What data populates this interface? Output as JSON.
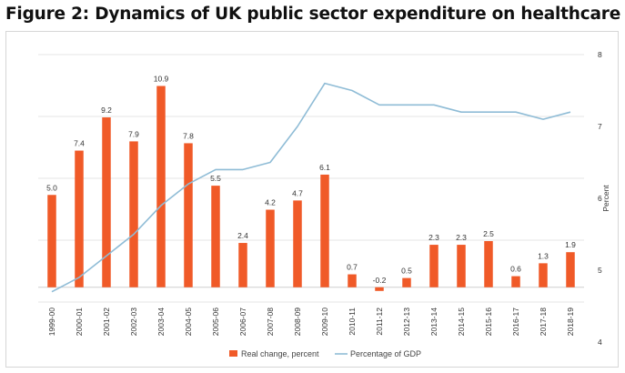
{
  "title": "Figure 2: Dynamics of UK public sector expenditure on healthcare",
  "colors": {
    "bar": "#f05a28",
    "line": "#8fbcd6",
    "grid": "#e6e6e6"
  },
  "chart_data": {
    "type": "bar+line",
    "categories": [
      "1999-00",
      "2000-01",
      "2001-02",
      "2002-03",
      "2003-04",
      "2004-05",
      "2005-06",
      "2006-07",
      "2007-08",
      "2008-09",
      "2009-10",
      "2010-11",
      "2011-12",
      "2012-13",
      "2013-14",
      "2014-15",
      "2015-16",
      "2016-17",
      "2017-18",
      "2018-19"
    ],
    "series": [
      {
        "name": "Real change, percent",
        "type": "bar",
        "axis": "left",
        "values": [
          5.0,
          7.4,
          9.2,
          7.9,
          10.9,
          7.8,
          5.5,
          2.4,
          4.2,
          4.7,
          6.1,
          0.7,
          -0.2,
          0.5,
          2.3,
          2.3,
          2.5,
          0.6,
          1.3,
          1.9
        ],
        "labels": [
          "5.0",
          "7.4",
          "9.2",
          "7.9",
          "10.9",
          "7.8",
          "5.5",
          "2.4",
          "4.2",
          "4.7",
          "6.1",
          "0.7",
          "-0.2",
          "0.5",
          "2.3",
          "2.3",
          "2.5",
          "0.6",
          "1.3",
          "1.9"
        ]
      },
      {
        "name": "Percentage of GDP",
        "type": "line",
        "axis": "right",
        "values": [
          4.7,
          4.9,
          5.2,
          5.5,
          5.9,
          6.2,
          6.4,
          6.4,
          6.5,
          7.0,
          7.6,
          7.5,
          7.3,
          7.3,
          7.3,
          7.2,
          7.2,
          7.2,
          7.1,
          7.2
        ]
      }
    ],
    "y2label": "Percent",
    "y2lim": [
      4,
      8
    ],
    "y2ticks": [
      "4",
      "5",
      "6",
      "7",
      "8"
    ],
    "ylim": [
      -0.8,
      12.6
    ],
    "grid": true,
    "legend": "bottom-center"
  }
}
